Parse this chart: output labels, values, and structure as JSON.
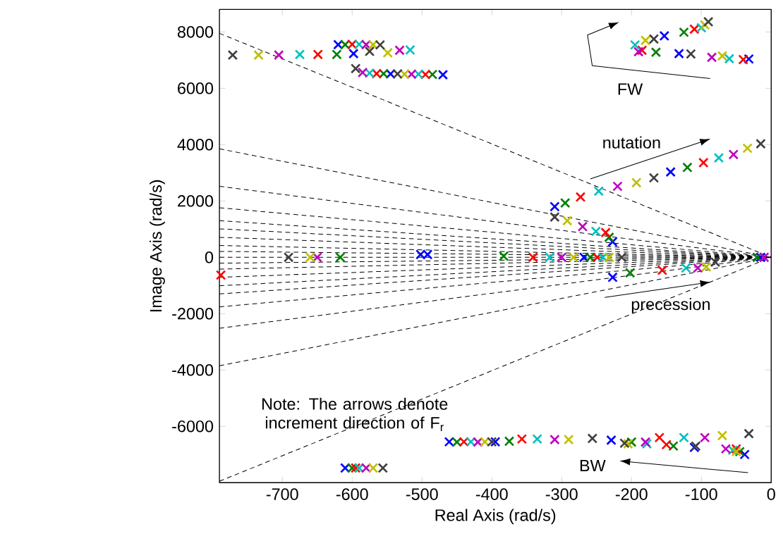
{
  "chart_data": {
    "type": "scatter",
    "xlabel": "Real Axis (rad/s)",
    "ylabel": "Image Axis (rad/s)",
    "marker": "cross",
    "xlim": [
      -790,
      0
    ],
    "ylim": [
      -8000,
      8800
    ],
    "xticks": [
      -700,
      -600,
      -500,
      -400,
      -300,
      -200,
      -100,
      0
    ],
    "yticks": [
      -6000,
      -4000,
      -2000,
      0,
      2000,
      4000,
      6000,
      8000
    ],
    "series": [
      {
        "type": "line",
        "marker": "none",
        "line_style": "dashed",
        "color": "#000000",
        "x": [
          -790,
          0
        ],
        "values": [
          7950,
          0
        ]
      },
      {
        "type": "line",
        "marker": "none",
        "line_style": "dashed",
        "color": "#000000",
        "x": [
          -790,
          0
        ],
        "values": [
          3850,
          0
        ]
      },
      {
        "type": "line",
        "marker": "none",
        "line_style": "dashed",
        "color": "#000000",
        "x": [
          -790,
          0
        ],
        "values": [
          2520,
          0
        ]
      },
      {
        "type": "line",
        "marker": "none",
        "line_style": "dashed",
        "color": "#000000",
        "x": [
          -790,
          0
        ],
        "values": [
          1760,
          0
        ]
      },
      {
        "type": "line",
        "marker": "none",
        "line_style": "dashed",
        "color": "#000000",
        "x": [
          -790,
          0
        ],
        "values": [
          1300,
          0
        ]
      },
      {
        "type": "line",
        "marker": "none",
        "line_style": "dashed",
        "color": "#000000",
        "x": [
          -790,
          0
        ],
        "values": [
          1010,
          0
        ]
      },
      {
        "type": "line",
        "marker": "none",
        "line_style": "dashed",
        "color": "#000000",
        "x": [
          -790,
          0
        ],
        "values": [
          710,
          0
        ]
      },
      {
        "type": "line",
        "marker": "none",
        "line_style": "dashed",
        "color": "#000000",
        "x": [
          -790,
          0
        ],
        "values": [
          420,
          0
        ]
      },
      {
        "type": "line",
        "marker": "none",
        "line_style": "dashed",
        "color": "#000000",
        "x": [
          -790,
          0
        ],
        "values": [
          210,
          0
        ]
      },
      {
        "type": "line",
        "marker": "none",
        "line_style": "dashed",
        "color": "#000000",
        "x": [
          -790,
          0
        ],
        "values": [
          0,
          0
        ]
      },
      {
        "type": "line",
        "marker": "none",
        "line_style": "dashed",
        "color": "#000000",
        "x": [
          -790,
          0
        ],
        "values": [
          -210,
          0
        ]
      },
      {
        "type": "line",
        "marker": "none",
        "line_style": "dashed",
        "color": "#000000",
        "x": [
          -790,
          0
        ],
        "values": [
          -420,
          0
        ]
      },
      {
        "type": "line",
        "marker": "none",
        "line_style": "dashed",
        "color": "#000000",
        "x": [
          -790,
          0
        ],
        "values": [
          -710,
          0
        ]
      },
      {
        "type": "line",
        "marker": "none",
        "line_style": "dashed",
        "color": "#000000",
        "x": [
          -790,
          0
        ],
        "values": [
          -1010,
          0
        ]
      },
      {
        "type": "line",
        "marker": "none",
        "line_style": "dashed",
        "color": "#000000",
        "x": [
          -790,
          0
        ],
        "values": [
          -1300,
          0
        ]
      },
      {
        "type": "line",
        "marker": "none",
        "line_style": "dashed",
        "color": "#000000",
        "x": [
          -790,
          0
        ],
        "values": [
          -1760,
          0
        ]
      },
      {
        "type": "line",
        "marker": "none",
        "line_style": "dashed",
        "color": "#000000",
        "x": [
          -790,
          0
        ],
        "values": [
          -2520,
          0
        ]
      },
      {
        "type": "line",
        "marker": "none",
        "line_style": "dashed",
        "color": "#000000",
        "x": [
          -790,
          0
        ],
        "values": [
          -3850,
          0
        ]
      },
      {
        "type": "line",
        "marker": "none",
        "line_style": "dashed",
        "color": "#000000",
        "x": [
          -790,
          0
        ],
        "values": [
          -7950,
          0
        ]
      },
      {
        "color": "#0000ff",
        "x": [
          -598,
          -620,
          -545,
          -470,
          -153,
          -132,
          -32,
          -144,
          -310,
          -227,
          -502,
          -492,
          -268,
          -227,
          -461,
          -395,
          -229,
          -110,
          -38,
          -610,
          -15
        ],
        "values": [
          7230,
          7550,
          6510,
          6480,
          7860,
          7230,
          7040,
          3030,
          1800,
          550,
          100,
          100,
          0,
          -710,
          -6550,
          -6550,
          -6490,
          -6750,
          -7000,
          -7480,
          0
        ]
      },
      {
        "color": "#008000",
        "x": [
          -622,
          -610,
          -555,
          -485,
          -125,
          -165,
          -120,
          -295,
          -232,
          -617,
          -383,
          -259,
          -202,
          -450,
          -375,
          -200,
          -140,
          -45,
          -600,
          -20
        ],
        "values": [
          7200,
          7550,
          6520,
          6490,
          7990,
          7280,
          3190,
          1930,
          710,
          0,
          40,
          0,
          -550,
          -6560,
          -6530,
          -6560,
          -6700,
          -6900,
          -7480,
          0
        ]
      },
      {
        "color": "#ff0000",
        "x": [
          -649,
          -600,
          -565,
          -495,
          -110,
          -185,
          -40,
          -97,
          -273,
          -237,
          -788,
          -341,
          -249,
          -156,
          -440,
          -357,
          -160,
          -150,
          -50,
          -595
        ],
        "values": [
          7200,
          7560,
          6520,
          6490,
          8100,
          7350,
          7020,
          3360,
          2140,
          880,
          -630,
          0,
          0,
          -460,
          -6550,
          -6450,
          -6400,
          -6650,
          -6800,
          -7480
        ]
      },
      {
        "color": "#00bfbf",
        "x": [
          -675,
          -517,
          -590,
          -575,
          -505,
          -195,
          -100,
          -60,
          -75,
          -247,
          -251,
          -317,
          -241,
          -122,
          -430,
          -335,
          -178,
          -125,
          -55,
          -590
        ],
        "values": [
          7200,
          7360,
          7560,
          6540,
          6500,
          7540,
          8150,
          7050,
          3530,
          2350,
          920,
          0,
          0,
          -380,
          -6550,
          -6450,
          -6620,
          -6400,
          -6850,
          -7480
        ]
      },
      {
        "color": "#bf00bf",
        "x": [
          -705,
          -532,
          -580,
          -585,
          -515,
          -190,
          -85,
          -54,
          -220,
          -270,
          -300,
          -650,
          -105,
          -420,
          -310,
          -180,
          -95,
          -65,
          -580,
          -10
        ],
        "values": [
          7180,
          7350,
          7550,
          6560,
          6500,
          7300,
          7100,
          3650,
          2520,
          1090,
          0,
          0,
          -380,
          -6560,
          -6470,
          -6560,
          -6400,
          -6800,
          -7480,
          0
        ]
      },
      {
        "color": "#bfbf00",
        "x": [
          -734,
          -549,
          -570,
          -525,
          -180,
          -95,
          -70,
          -34,
          -193,
          -292,
          -283,
          -232,
          -660,
          -93,
          -410,
          -290,
          -205,
          -70,
          -50,
          -570
        ],
        "values": [
          7180,
          7260,
          7550,
          6500,
          7700,
          8250,
          7150,
          3870,
          2650,
          1300,
          0,
          0,
          0,
          -340,
          -6550,
          -6470,
          -6620,
          -6330,
          -6900,
          -7480
        ]
      },
      {
        "color": "#404040",
        "x": [
          -771,
          -575,
          -560,
          -595,
          -535,
          -168,
          -90,
          -115,
          -15,
          -168,
          -310,
          -214,
          -691,
          -80,
          -400,
          -256,
          -210,
          -108,
          -32,
          -556
        ],
        "values": [
          7180,
          7310,
          7540,
          6700,
          6510,
          7750,
          8360,
          7220,
          4030,
          2820,
          1430,
          0,
          0,
          -170,
          -6550,
          -6430,
          -6600,
          -6700,
          -6260,
          -7480
        ]
      }
    ],
    "annotations": [
      "FW",
      "nutation",
      "precession",
      "BW",
      "Note: The arrows denote increment direction of F$_{r}$"
    ]
  }
}
